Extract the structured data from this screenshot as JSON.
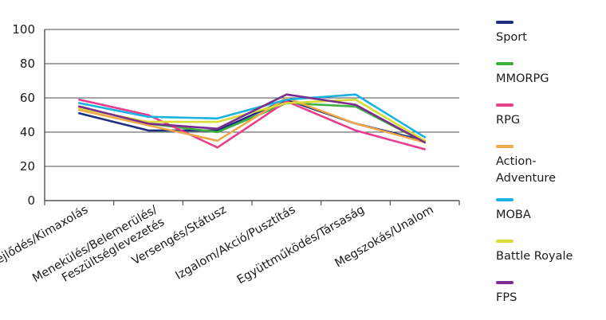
{
  "chart_data": {
    "type": "line",
    "categories": [
      "Fejlődés/Kimaxolás",
      "Menekülés/Belemerülés/\nFeszültséglevezetés",
      "Versengés/Státusz",
      "Izgalom/Akció/Pusztítás",
      "Együttműködés/Társaság",
      "Megszokás/Unalom"
    ],
    "ylim": [
      0,
      100
    ],
    "yticks": [
      "0",
      "20",
      "40",
      "60",
      "80",
      "100"
    ],
    "grid": "horizontal",
    "legend_position": "right",
    "series": [
      {
        "name": "Sport",
        "color": "#1b2f7d",
        "values": [
          51,
          41,
          41,
          59,
          45,
          35
        ]
      },
      {
        "name": "MMORPG",
        "color": "#3cb043",
        "values": [
          55,
          45,
          40,
          57,
          55,
          34
        ]
      },
      {
        "name": "RPG",
        "color": "#e83e8c",
        "values": [
          59,
          50,
          31,
          58,
          41,
          30
        ]
      },
      {
        "name": "Action-\nAdventure",
        "color": "#f0a94a",
        "values": [
          53,
          44,
          35,
          60,
          45,
          34
        ]
      },
      {
        "name": "MOBA",
        "color": "#1ab2e0",
        "values": [
          57,
          49,
          48,
          59,
          62,
          37
        ]
      },
      {
        "name": "Battle Royale",
        "color": "#d8dc35",
        "values": [
          54,
          46,
          46,
          57,
          59,
          35
        ]
      },
      {
        "name": "FPS",
        "color": "#7b2d8e",
        "values": [
          55,
          45,
          42,
          62,
          56,
          34
        ]
      }
    ]
  }
}
